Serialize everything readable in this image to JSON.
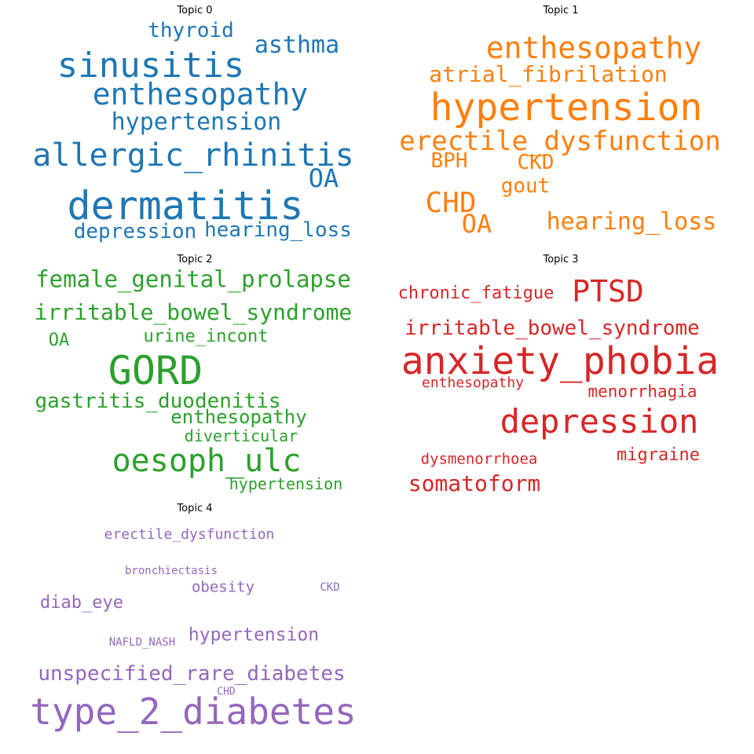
{
  "topics": [
    {
      "title": "Topic 0",
      "color": "#1f77b4",
      "words": [
        "sinusitis",
        "thyroid",
        "asthma",
        "enthesopathy",
        "hypertension",
        "allergic_rhinitis",
        "OA",
        "dermatitis",
        "depression",
        "hearing_loss"
      ]
    },
    {
      "title": "Topic 1",
      "color": "#ff7f0e",
      "words": [
        "enthesopathy",
        "atrial_fibrilation",
        "hypertension",
        "erectile_dysfunction",
        "BPH",
        "CKD",
        "gout",
        "CHD",
        "OA",
        "hearing_loss"
      ]
    },
    {
      "title": "Topic 2",
      "color": "#2ca02c",
      "words": [
        "female_genital_prolapse",
        "irritable_bowel_syndrome",
        "OA",
        "urine_incont",
        "GORD",
        "gastritis_duodenitis",
        "enthesopathy",
        "diverticular",
        "oesoph_ulc",
        "hypertension"
      ]
    },
    {
      "title": "Topic 3",
      "color": "#d62728",
      "words": [
        "chronic_fatigue",
        "PTSD",
        "irritable_bowel_syndrome",
        "anxiety_phobia",
        "enthesopathy",
        "menorrhagia",
        "depression",
        "dysmenorrhoea",
        "migraine",
        "somatoform"
      ]
    },
    {
      "title": "Topic 4",
      "color": "#9467bd",
      "words": [
        "erectile_dysfunction",
        "bronchiectasis",
        "obesity",
        "CKD",
        "diab_eye",
        "NAFLD_NASH",
        "hypertension",
        "unspecified_rare_diabetes",
        "CHD",
        "type_2_diabetes"
      ]
    }
  ]
}
